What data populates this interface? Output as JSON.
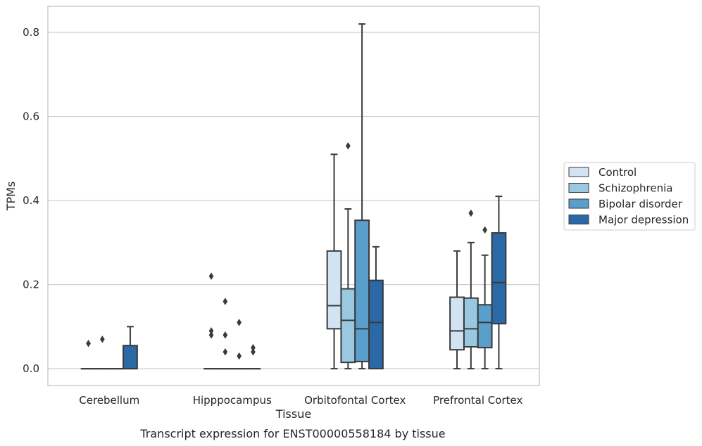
{
  "caption": "Transcript expression for ENST00000558184 by tissue",
  "chart_data": {
    "type": "box",
    "title": "",
    "xlabel": "Tissue",
    "ylabel": "TPMs",
    "ylim": [
      -0.04,
      0.862
    ],
    "yticks": [
      "0.0",
      "0.2",
      "0.4",
      "0.6",
      "0.8"
    ],
    "ytick_values": [
      0.0,
      0.2,
      0.4,
      0.6,
      0.8
    ],
    "grid": "horizontal",
    "legend_position": "outside right",
    "categories": [
      "Cerebellum",
      "Hipppocampus",
      "Orbitofontal Cortex",
      "Prefrontal Cortex"
    ],
    "series": [
      {
        "name": "Control",
        "color": "#d2e3f3",
        "boxes": [
          {
            "min": 0,
            "q1": 0,
            "median": 0,
            "q3": 0,
            "max": 0,
            "outliers": [
              0.06
            ]
          },
          {
            "min": 0,
            "q1": 0,
            "median": 0,
            "q3": 0,
            "max": 0,
            "outliers": [
              0.22,
              0.09,
              0.08
            ]
          },
          {
            "min": 0,
            "q1": 0.095,
            "median": 0.15,
            "q3": 0.28,
            "max": 0.51,
            "outliers": []
          },
          {
            "min": 0,
            "q1": 0.045,
            "median": 0.09,
            "q3": 0.17,
            "max": 0.28,
            "outliers": []
          }
        ]
      },
      {
        "name": "Schizophrenia",
        "color": "#9ac8e0",
        "boxes": [
          {
            "min": 0,
            "q1": 0,
            "median": 0,
            "q3": 0,
            "max": 0,
            "outliers": [
              0.07
            ]
          },
          {
            "min": 0,
            "q1": 0,
            "median": 0,
            "q3": 0,
            "max": 0,
            "outliers": [
              0.16,
              0.08,
              0.04
            ]
          },
          {
            "min": 0,
            "q1": 0.015,
            "median": 0.115,
            "q3": 0.19,
            "max": 0.38,
            "outliers": [
              0.53
            ]
          },
          {
            "min": 0,
            "q1": 0.052,
            "median": 0.095,
            "q3": 0.168,
            "max": 0.3,
            "outliers": [
              0.37
            ]
          }
        ]
      },
      {
        "name": "Bipolar disorder",
        "color": "#5a9ecb",
        "boxes": [
          {
            "min": 0,
            "q1": 0,
            "median": 0,
            "q3": 0,
            "max": 0,
            "outliers": []
          },
          {
            "min": 0,
            "q1": 0,
            "median": 0,
            "q3": 0,
            "max": 0,
            "outliers": [
              0.11,
              0.03
            ]
          },
          {
            "min": 0,
            "q1": 0.017,
            "median": 0.095,
            "q3": 0.353,
            "max": 0.82,
            "outliers": []
          },
          {
            "min": 0,
            "q1": 0.05,
            "median": 0.11,
            "q3": 0.152,
            "max": 0.27,
            "outliers": [
              0.33
            ]
          }
        ]
      },
      {
        "name": "Major depression",
        "color": "#2b68a6",
        "boxes": [
          {
            "min": 0,
            "q1": 0,
            "median": 0,
            "q3": 0.055,
            "max": 0.1,
            "outliers": []
          },
          {
            "min": 0,
            "q1": 0,
            "median": 0,
            "q3": 0,
            "max": 0,
            "outliers": [
              0.05,
              0.04
            ]
          },
          {
            "min": 0,
            "q1": 0,
            "median": 0.11,
            "q3": 0.21,
            "max": 0.29,
            "outliers": []
          },
          {
            "min": 0,
            "q1": 0.107,
            "median": 0.205,
            "q3": 0.323,
            "max": 0.41,
            "outliers": []
          }
        ]
      }
    ]
  }
}
